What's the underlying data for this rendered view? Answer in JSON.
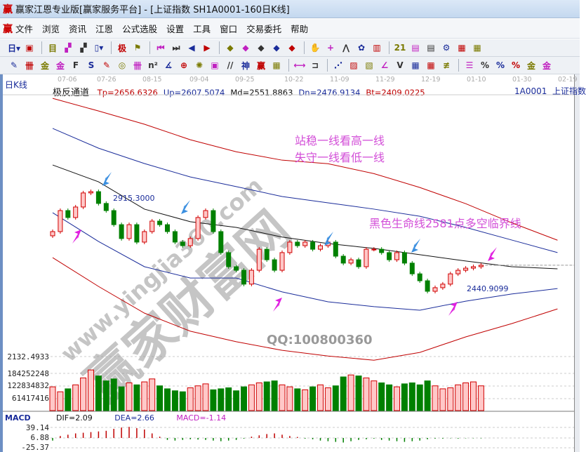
{
  "window": {
    "title": "赢家江恩专业版[赢家服务平台] - [上证指数  SH1A0001-160日K线]",
    "logo": "赢"
  },
  "menu": [
    "文件",
    "浏览",
    "资讯",
    "江恩",
    "公式选股",
    "设置",
    "工具",
    "窗口",
    "交易委托",
    "帮助"
  ],
  "toolbar1": [
    {
      "icon": "period-day-icon",
      "g": "日▾"
    },
    {
      "icon": "window-icon",
      "g": "▣"
    },
    {
      "icon": "list-icon",
      "g": "目"
    },
    {
      "icon": "indicator3-icon",
      "g": "▞"
    },
    {
      "icon": "indicator9-icon",
      "g": "▞"
    },
    {
      "icon": "candle-type-icon",
      "g": "▯▾"
    },
    {
      "icon": "extreme-icon",
      "g": "极"
    },
    {
      "icon": "flag-icon",
      "g": "⚑"
    },
    {
      "icon": "first-icon",
      "g": "⏮"
    },
    {
      "icon": "last-icon",
      "g": "⏭"
    },
    {
      "icon": "left-icon",
      "g": "◀"
    },
    {
      "icon": "right-icon",
      "g": "▶"
    },
    {
      "icon": "diamond-left-icon",
      "g": "◆"
    },
    {
      "icon": "diamond-right-icon",
      "g": "◆"
    },
    {
      "icon": "diamond-both-icon",
      "g": "◆"
    },
    {
      "icon": "diamond-x-icon",
      "g": "◆"
    },
    {
      "icon": "diamond-plus-icon",
      "g": "◆"
    },
    {
      "icon": "hand-icon",
      "g": "✋"
    },
    {
      "icon": "crosshair-icon",
      "g": "+"
    },
    {
      "icon": "zigzag-icon",
      "g": "⋀"
    },
    {
      "icon": "stamp-icon",
      "g": "✿"
    },
    {
      "icon": "chart-icon",
      "g": "▥"
    },
    {
      "icon": "calendar-icon",
      "g": "21"
    },
    {
      "icon": "monitor-icon",
      "g": "▤"
    },
    {
      "icon": "screen-icon",
      "g": "▤"
    },
    {
      "icon": "tools-icon",
      "g": "⚙"
    },
    {
      "icon": "layout-icon",
      "g": "▦"
    },
    {
      "icon": "grid-icon",
      "g": "▦"
    }
  ],
  "toolbar2": [
    {
      "icon": "pen-icon",
      "g": "✎"
    },
    {
      "icon": "hash-icon",
      "g": "卌"
    },
    {
      "icon": "gold1-icon",
      "g": "金"
    },
    {
      "icon": "gold2-icon",
      "g": "金"
    },
    {
      "icon": "fib-icon",
      "g": "F"
    },
    {
      "icon": "curve-icon",
      "g": "S"
    },
    {
      "icon": "eraser-icon",
      "g": "✎"
    },
    {
      "icon": "cycle-icon",
      "g": "◎"
    },
    {
      "icon": "lines-icon",
      "g": "卌"
    },
    {
      "icon": "square-icon",
      "g": "n²"
    },
    {
      "icon": "angle-icon",
      "g": "∡"
    },
    {
      "icon": "target-icon",
      "g": "⊕"
    },
    {
      "icon": "star-icon",
      "g": "✺"
    },
    {
      "icon": "box-icon",
      "g": "▣"
    },
    {
      "icon": "slash-icon",
      "g": "//"
    },
    {
      "icon": "god-icon",
      "g": "神"
    },
    {
      "icon": "ying-icon",
      "g": "赢"
    },
    {
      "icon": "ruler-icon",
      "g": "▦"
    },
    {
      "icon": "width-icon",
      "g": "⟷"
    },
    {
      "icon": "frame-icon",
      "g": "⊐"
    },
    {
      "icon": "fan-icon",
      "g": "⋰"
    },
    {
      "icon": "fan-box-icon",
      "g": "▨"
    },
    {
      "icon": "fan-box2-icon",
      "g": "▧"
    },
    {
      "icon": "speed-icon",
      "g": "∠"
    },
    {
      "icon": "wave-icon",
      "g": "V"
    },
    {
      "icon": "gann-grid-icon",
      "g": "▦"
    },
    {
      "icon": "gann-grid2-icon",
      "g": "▦"
    },
    {
      "icon": "parallel-icon",
      "g": "≢"
    },
    {
      "icon": "table-icon",
      "g": "☰"
    },
    {
      "icon": "percent-line-icon",
      "g": "%"
    },
    {
      "icon": "percent-icon",
      "g": "%"
    },
    {
      "icon": "percent-lines-icon",
      "g": "%"
    },
    {
      "icon": "coin-icon",
      "g": "金"
    },
    {
      "icon": "gold-lines-icon",
      "g": "金"
    }
  ],
  "chart": {
    "period_label": "日K线",
    "dates": [
      "07-06",
      "07-26",
      "08-15",
      "09-04",
      "09-25",
      "10-22",
      "11-09",
      "11-29",
      "12-19",
      "01-10",
      "01-30",
      "02-19"
    ],
    "indicator_name": "极反通道",
    "values": [
      {
        "k": "Tp",
        "t": "Tp=2656.6326",
        "c": "#c00000"
      },
      {
        "k": "Up",
        "t": "Up=2607.5074",
        "c": "#1a2c9a"
      },
      {
        "k": "Md",
        "t": "Md=2551.8863",
        "c": "#111111"
      },
      {
        "k": "Dn",
        "t": "Dn=2476.9134",
        "c": "#1a2c9a"
      },
      {
        "k": "Bt",
        "t": "Bt=2409.0225",
        "c": "#c00000"
      }
    ],
    "code": "1A0001",
    "name": "上证指数",
    "high_label": "2915.3000",
    "low_label": "2440.9099",
    "annotation1": "站稳一线看高一线",
    "annotation2": "失守一线看低一线",
    "annotation3": "黑色生命线2581点多空临界线",
    "closes": [
      2725,
      2825,
      2792,
      2842,
      2909,
      2915,
      2859,
      2825,
      2758,
      2692,
      2758,
      2675,
      2725,
      2775,
      2758,
      2725,
      2675,
      2658,
      2692,
      2792,
      2825,
      2725,
      2625,
      2558,
      2541,
      2475,
      2541,
      2641,
      2591,
      2541,
      2625,
      2675,
      2658,
      2675,
      2641,
      2658,
      2675,
      2608,
      2575,
      2591,
      2558,
      2641,
      2641,
      2625,
      2591,
      2625,
      2575,
      2524,
      2491,
      2441,
      2458,
      2475,
      2524,
      2541,
      2551,
      2558,
      2565
    ],
    "channel_index": [
      0,
      6,
      12,
      18,
      24,
      30,
      36,
      42,
      48,
      54,
      60,
      66
    ],
    "channels": {
      "Tp": [
        3359,
        3299,
        3236,
        3162,
        3105,
        3065,
        3048,
        3001,
        2935,
        2858,
        2767,
        2684
      ],
      "Up": [
        3216,
        3122,
        3049,
        2985,
        2939,
        2892,
        2862,
        2832,
        2798,
        2745,
        2685,
        2625
      ],
      "Md": [
        3042,
        2962,
        2832,
        2772,
        2745,
        2699,
        2668,
        2645,
        2615,
        2585,
        2558,
        2548
      ],
      "Dn": [
        2815,
        2678,
        2558,
        2504,
        2504,
        2438,
        2391,
        2368,
        2351,
        2394,
        2428,
        2454
      ],
      "Bt": [
        2601,
        2464,
        2337,
        2251,
        2201,
        2160,
        2133,
        2113,
        2150,
        2224,
        2287,
        2357
      ]
    },
    "colors": {
      "up": "#d00000",
      "up_fill": "#ffc8c8",
      "down": "#008000",
      "blue": "#1a2c9a",
      "arrow_blue": "#3b8fe0",
      "arrow_pink": "#e020e0"
    }
  },
  "volume": {
    "axis": [
      "2132.4933",
      "184252248",
      "122834832",
      "61417416"
    ],
    "values": [
      120000000,
      95000000,
      110000000,
      130000000,
      165000000,
      205000000,
      175000000,
      150000000,
      160000000,
      120000000,
      140000000,
      130000000,
      145000000,
      160000000,
      125000000,
      110000000,
      100000000,
      95000000,
      115000000,
      125000000,
      135000000,
      105000000,
      110000000,
      115000000,
      100000000,
      120000000,
      130000000,
      140000000,
      145000000,
      150000000,
      130000000,
      120000000,
      110000000,
      105000000,
      120000000,
      130000000,
      115000000,
      125000000,
      170000000,
      180000000,
      175000000,
      165000000,
      150000000,
      140000000,
      130000000,
      120000000,
      135000000,
      140000000,
      130000000,
      150000000,
      125000000,
      110000000,
      115000000,
      130000000,
      140000000,
      145000000,
      125000000
    ]
  },
  "macd": {
    "title": "MACD",
    "dif": "DIF=2.09",
    "dea": "DEA=2.66",
    "macd": "MACD=-1.14",
    "axis": [
      "39.14",
      "6.88",
      "-25.37"
    ],
    "hist": [
      -8,
      6,
      10,
      14,
      16,
      18,
      20,
      22,
      28,
      32,
      34,
      30,
      26,
      14,
      4,
      -6,
      -8,
      -6,
      -4,
      -5,
      -6,
      -8,
      -10,
      -8,
      -6,
      -2,
      4,
      8,
      12,
      14,
      10,
      6,
      3,
      -2,
      -4,
      -8,
      -10,
      -12,
      -14,
      -10,
      -6,
      -4,
      -2,
      -6,
      -8,
      -10,
      -12,
      -10,
      -8,
      -4,
      -2,
      -2,
      -1,
      -2,
      -1,
      -1,
      -1.14
    ],
    "colors": {
      "dif": "#111111",
      "dea": "#1a2c9a",
      "macd": "#c020c0"
    }
  },
  "watermark": {
    "brand": "赢家财富网",
    "url": "www.yingjia360.com",
    "qq": "QQ:100800360"
  }
}
